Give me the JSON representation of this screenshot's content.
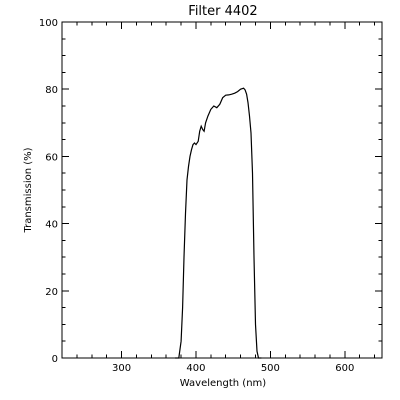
{
  "chart_data": {
    "type": "line",
    "title": "Filter 4402",
    "xlabel": "Wavelength (nm)",
    "ylabel": "Transmission (%)",
    "xlim": [
      220,
      650
    ],
    "ylim": [
      0,
      100
    ],
    "x_ticks": [
      300,
      400,
      500,
      600
    ],
    "x_tick_labels": [
      "300",
      "400",
      "500",
      "600"
    ],
    "x_minor_step": 20,
    "y_ticks": [
      0,
      20,
      40,
      60,
      80,
      100
    ],
    "y_tick_labels": [
      "0",
      "20",
      "40",
      "60",
      "80",
      "100"
    ],
    "y_minor_step": 5,
    "grid": false,
    "series": [
      {
        "color": "#000000",
        "x": [
          372,
          377,
          380,
          382,
          384,
          386,
          388,
          390,
          392,
          394,
          396,
          398,
          400,
          403,
          405,
          407,
          409,
          411,
          413,
          416,
          420,
          424,
          428,
          432,
          436,
          440,
          444,
          448,
          452,
          456,
          460,
          464,
          466,
          468,
          470,
          472,
          474,
          476,
          478,
          480,
          482,
          484,
          486,
          488
        ],
        "y": [
          0,
          0,
          5,
          15,
          30,
          43,
          53,
          57,
          60,
          62,
          63.5,
          64,
          63.5,
          64.5,
          67.5,
          69,
          68,
          67.5,
          70,
          72,
          74,
          75,
          74.5,
          75.5,
          77.5,
          78.2,
          78.3,
          78.5,
          78.8,
          79.3,
          80,
          80.3,
          79.8,
          78.5,
          76,
          72,
          67,
          55,
          30,
          10,
          2,
          0,
          0,
          0
        ]
      }
    ]
  }
}
